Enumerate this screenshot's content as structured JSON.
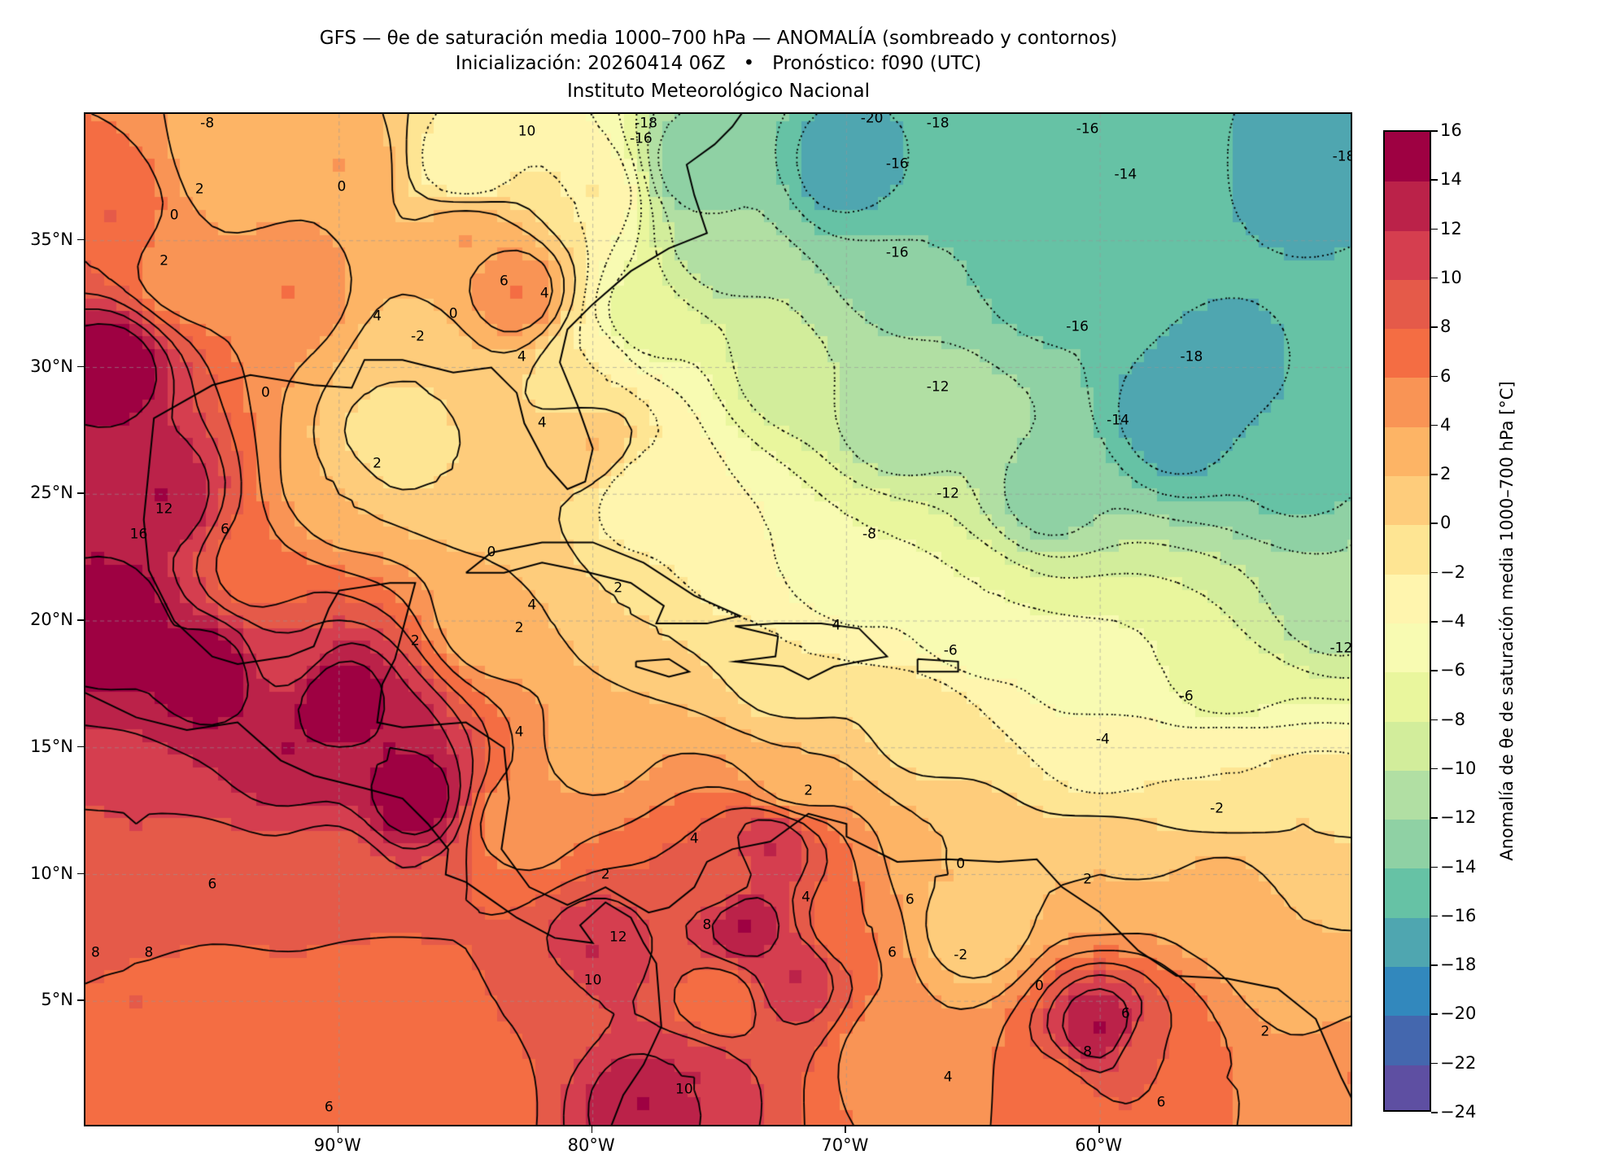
{
  "header": {
    "title_line1": "GFS — θe de saturación media 1000–700 hPa — ANOMALÍA (sombreado y contornos)",
    "title_line2": "Inicialización: 20260414 06Z   •   Pronóstico: f090 (UTC)",
    "title_line3": "Instituto Meteorológico Nacional"
  },
  "map": {
    "extent": {
      "lon": [
        -100,
        -50
      ],
      "lat": [
        0,
        40
      ]
    },
    "lat_ticks": [
      {
        "value": 35,
        "label": "35°N"
      },
      {
        "value": 30,
        "label": "30°N"
      },
      {
        "value": 25,
        "label": "25°N"
      },
      {
        "value": 20,
        "label": "20°N"
      },
      {
        "value": 15,
        "label": "15°N"
      },
      {
        "value": 10,
        "label": "10°N"
      },
      {
        "value": 5,
        "label": "5°N"
      }
    ],
    "lon_ticks": [
      {
        "value": -90,
        "label": "90°W"
      },
      {
        "value": -80,
        "label": "80°W"
      },
      {
        "value": -70,
        "label": "70°W"
      },
      {
        "value": -60,
        "label": "60°W"
      }
    ],
    "contour_interval": 2,
    "field_samples": [
      [
        -99,
        30,
        16
      ],
      [
        -99,
        20,
        16
      ],
      [
        -97,
        25,
        14
      ],
      [
        -95,
        18,
        16
      ],
      [
        -90,
        17,
        16
      ],
      [
        -87,
        13,
        16
      ],
      [
        -92,
        15,
        14
      ],
      [
        -88,
        15,
        14
      ],
      [
        -99,
        36,
        8
      ],
      [
        -96,
        34,
        4
      ],
      [
        -94,
        38,
        2
      ],
      [
        -90,
        38,
        4
      ],
      [
        -92,
        33,
        6
      ],
      [
        -85,
        35,
        4
      ],
      [
        -83,
        33,
        6
      ],
      [
        -87,
        30,
        0
      ],
      [
        -88,
        27,
        -2
      ],
      [
        -85,
        26,
        0
      ],
      [
        -90,
        25,
        2
      ],
      [
        -93,
        22,
        6
      ],
      [
        -92,
        19,
        10
      ],
      [
        -98,
        12,
        10
      ],
      [
        -95,
        9,
        8
      ],
      [
        -90,
        10,
        8
      ],
      [
        -85,
        9,
        8
      ],
      [
        -88,
        4,
        6
      ],
      [
        -95,
        3,
        6
      ],
      [
        -98,
        5,
        8
      ],
      [
        -80,
        7,
        12
      ],
      [
        -82,
        5,
        8
      ],
      [
        -83,
        12,
        4
      ],
      [
        -80,
        15,
        3
      ],
      [
        -84,
        20,
        2
      ],
      [
        -78,
        20,
        0
      ],
      [
        -75,
        23,
        -4
      ],
      [
        -78,
        25,
        -4
      ],
      [
        -80,
        27,
        2
      ],
      [
        -80,
        30,
        -2
      ],
      [
        -78,
        32,
        -8
      ],
      [
        -75,
        35,
        -12
      ],
      [
        -80,
        37,
        -2
      ],
      [
        -85,
        38,
        -4
      ],
      [
        -76,
        38,
        -14
      ],
      [
        -70,
        38,
        -18
      ],
      [
        -65,
        38,
        -16
      ],
      [
        -58,
        38,
        -15
      ],
      [
        -52,
        38,
        -18
      ],
      [
        -55,
        30,
        -17
      ],
      [
        -57,
        28,
        -18
      ],
      [
        -62,
        34,
        -16
      ],
      [
        -68,
        34,
        -14
      ],
      [
        -72,
        30,
        -10
      ],
      [
        -68,
        28,
        -12
      ],
      [
        -62,
        25,
        -13
      ],
      [
        -70,
        22,
        -6
      ],
      [
        -65,
        20,
        -6
      ],
      [
        -60,
        18,
        -6
      ],
      [
        -55,
        18,
        -8
      ],
      [
        -51,
        21,
        -12
      ],
      [
        -52,
        26,
        -15
      ],
      [
        -60,
        15,
        -3
      ],
      [
        -55,
        14,
        -2
      ],
      [
        -52,
        12,
        0
      ],
      [
        -67,
        16,
        -1
      ],
      [
        -72,
        14,
        2
      ],
      [
        -75,
        10,
        8
      ],
      [
        -73,
        11,
        12
      ],
      [
        -74,
        8,
        14
      ],
      [
        -72,
        6,
        12
      ],
      [
        -76,
        2,
        12
      ],
      [
        -78,
        1,
        14
      ],
      [
        -70,
        8,
        6
      ],
      [
        -65,
        8,
        0
      ],
      [
        -66,
        10,
        2
      ],
      [
        -60,
        4,
        14
      ],
      [
        -58,
        3,
        8
      ],
      [
        -55,
        2,
        6
      ],
      [
        -52,
        6,
        2
      ],
      [
        -50,
        2,
        6
      ],
      [
        -62,
        1,
        6
      ],
      [
        -68,
        3,
        4
      ],
      [
        -85,
        1,
        6
      ],
      [
        -75,
        5,
        6
      ],
      [
        -60,
        10,
        2
      ],
      [
        -55,
        9,
        3
      ],
      [
        -72,
        18,
        -2
      ]
    ],
    "contour_labels": [
      {
        "lon": -69.0,
        "lat": 39.8,
        "text": "-20"
      },
      {
        "lon": -66.4,
        "lat": 39.6,
        "text": "-18"
      },
      {
        "lon": -60.5,
        "lat": 39.4,
        "text": "-16"
      },
      {
        "lon": -68.0,
        "lat": 38.0,
        "text": "-16"
      },
      {
        "lon": -59.0,
        "lat": 37.6,
        "text": "-14"
      },
      {
        "lon": -68.0,
        "lat": 34.5,
        "text": "-16"
      },
      {
        "lon": -60.9,
        "lat": 31.6,
        "text": "-16"
      },
      {
        "lon": -56.4,
        "lat": 30.4,
        "text": "-18"
      },
      {
        "lon": -66.4,
        "lat": 29.2,
        "text": "-12"
      },
      {
        "lon": -59.3,
        "lat": 27.9,
        "text": "-14"
      },
      {
        "lon": -66.0,
        "lat": 25.0,
        "text": "-12"
      },
      {
        "lon": -69.1,
        "lat": 23.4,
        "text": "-8"
      },
      {
        "lon": -65.9,
        "lat": 18.8,
        "text": "-6"
      },
      {
        "lon": -56.6,
        "lat": 17.0,
        "text": "-6"
      },
      {
        "lon": -59.9,
        "lat": 15.3,
        "text": "-4"
      },
      {
        "lon": -55.4,
        "lat": 12.6,
        "text": "-2"
      },
      {
        "lon": -50.5,
        "lat": 18.9,
        "text": "-12"
      },
      {
        "lon": -50.4,
        "lat": 38.3,
        "text": "-18"
      },
      {
        "lon": -71.5,
        "lat": 13.3,
        "text": "2"
      },
      {
        "lon": -65.5,
        "lat": 10.4,
        "text": "0"
      },
      {
        "lon": -60.5,
        "lat": 9.8,
        "text": "2"
      },
      {
        "lon": -65.5,
        "lat": 6.8,
        "text": "-2"
      },
      {
        "lon": -62.4,
        "lat": 5.6,
        "text": "0"
      },
      {
        "lon": -59.0,
        "lat": 4.5,
        "text": "6"
      },
      {
        "lon": -60.5,
        "lat": 3.0,
        "text": "8"
      },
      {
        "lon": -53.5,
        "lat": 3.8,
        "text": "2"
      },
      {
        "lon": -66.0,
        "lat": 2.0,
        "text": "4"
      },
      {
        "lon": -57.6,
        "lat": 1.0,
        "text": "6"
      },
      {
        "lon": -67.5,
        "lat": 9.0,
        "text": "6"
      },
      {
        "lon": -68.2,
        "lat": 6.9,
        "text": "6"
      },
      {
        "lon": -71.6,
        "lat": 9.1,
        "text": "4"
      },
      {
        "lon": -76.0,
        "lat": 11.4,
        "text": "4"
      },
      {
        "lon": -79.5,
        "lat": 10.0,
        "text": "2"
      },
      {
        "lon": -79.0,
        "lat": 7.5,
        "text": "12"
      },
      {
        "lon": -80.0,
        "lat": 5.8,
        "text": "10"
      },
      {
        "lon": -75.5,
        "lat": 8.0,
        "text": "8"
      },
      {
        "lon": -76.4,
        "lat": 1.5,
        "text": "10"
      },
      {
        "lon": -90.4,
        "lat": 0.8,
        "text": "6"
      },
      {
        "lon": -95.0,
        "lat": 9.6,
        "text": "6"
      },
      {
        "lon": -97.5,
        "lat": 6.9,
        "text": "8"
      },
      {
        "lon": -99.6,
        "lat": 6.9,
        "text": "8"
      },
      {
        "lon": -96.9,
        "lat": 24.4,
        "text": "12"
      },
      {
        "lon": -97.9,
        "lat": 23.4,
        "text": "16"
      },
      {
        "lon": -94.5,
        "lat": 23.6,
        "text": "6"
      },
      {
        "lon": -88.5,
        "lat": 26.2,
        "text": "2"
      },
      {
        "lon": -84.0,
        "lat": 22.7,
        "text": "0"
      },
      {
        "lon": -79.0,
        "lat": 21.3,
        "text": "2"
      },
      {
        "lon": -82.4,
        "lat": 20.6,
        "text": "4"
      },
      {
        "lon": -82.9,
        "lat": 19.7,
        "text": "2"
      },
      {
        "lon": -87.0,
        "lat": 19.2,
        "text": "2"
      },
      {
        "lon": -82.9,
        "lat": 15.6,
        "text": "4"
      },
      {
        "lon": -70.4,
        "lat": 19.8,
        "text": "4"
      },
      {
        "lon": -92.9,
        "lat": 29.0,
        "text": "0"
      },
      {
        "lon": -86.9,
        "lat": 31.2,
        "text": "-2"
      },
      {
        "lon": -85.5,
        "lat": 32.1,
        "text": "0"
      },
      {
        "lon": -88.5,
        "lat": 32.0,
        "text": "4"
      },
      {
        "lon": -83.5,
        "lat": 33.4,
        "text": "6"
      },
      {
        "lon": -81.9,
        "lat": 32.9,
        "text": "4"
      },
      {
        "lon": -82.8,
        "lat": 30.4,
        "text": "4"
      },
      {
        "lon": -82.0,
        "lat": 27.8,
        "text": "4"
      },
      {
        "lon": -96.9,
        "lat": 34.2,
        "text": "2"
      },
      {
        "lon": -95.5,
        "lat": 37.0,
        "text": "2"
      },
      {
        "lon": -89.9,
        "lat": 37.1,
        "text": "0"
      },
      {
        "lon": -96.5,
        "lat": 36.0,
        "text": "0"
      },
      {
        "lon": -82.6,
        "lat": 39.3,
        "text": "10"
      },
      {
        "lon": -77.9,
        "lat": 39.6,
        "text": "-18"
      },
      {
        "lon": -78.1,
        "lat": 39.0,
        "text": "-16"
      },
      {
        "lon": -95.2,
        "lat": 39.6,
        "text": "-8"
      }
    ]
  },
  "colorbar": {
    "label": "Anomalía de θe de saturación media 1000–700 hPa [°C]",
    "range": [
      -24,
      16
    ],
    "ticks": [
      "16",
      "14",
      "12",
      "10",
      "8",
      "6",
      "4",
      "2",
      "0",
      "−2",
      "−4",
      "−6",
      "−8",
      "−10",
      "−12",
      "−14",
      "−16",
      "−18",
      "−20",
      "−22",
      "−24"
    ],
    "colors": [
      "#5e4fa2",
      "#4467ae",
      "#3288bd",
      "#4fa6b0",
      "#66c2a5",
      "#8fd1a4",
      "#b1dfa3",
      "#d2ed9b",
      "#e9f69d",
      "#f8fbb2",
      "#fff5ae",
      "#fee593",
      "#fecc7b",
      "#fdb465",
      "#f99455",
      "#f46d43",
      "#e55a49",
      "#d53e4f",
      "#bb2249",
      "#9e0142"
    ]
  }
}
